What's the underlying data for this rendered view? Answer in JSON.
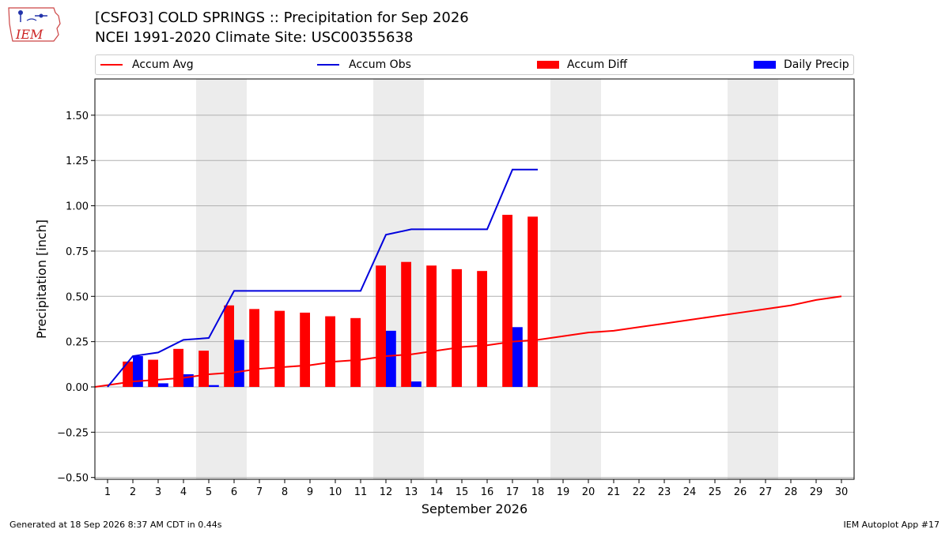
{
  "header": {
    "title_line1": "[CSFO3] COLD SPRINGS :: Precipitation for Sep 2026",
    "title_line2": "NCEI 1991-2020 Climate Site: USC00355638"
  },
  "logo": {
    "text": "IEM"
  },
  "footer": {
    "left": "Generated at 18 Sep 2026 8:37 AM CDT in 0.44s",
    "right": "IEM Autoplot App #17"
  },
  "legend": [
    {
      "label": "Accum Avg",
      "kind": "line",
      "color": "#ff0000"
    },
    {
      "label": "Accum Obs",
      "kind": "line",
      "color": "#0000dd"
    },
    {
      "label": "Accum Diff",
      "kind": "bar",
      "color": "#ff0000"
    },
    {
      "label": "Daily Precip",
      "kind": "bar",
      "color": "#0000ff"
    }
  ],
  "chart_data": {
    "type": "bar",
    "xlabel": "September 2026",
    "ylabel": "Precipitation [inch]",
    "xlim": [
      0.5,
      30.5
    ],
    "ylim": [
      -0.51,
      1.7
    ],
    "x_ticks": [
      1,
      2,
      3,
      4,
      5,
      6,
      7,
      8,
      9,
      10,
      11,
      12,
      13,
      14,
      15,
      16,
      17,
      18,
      19,
      20,
      21,
      22,
      23,
      24,
      25,
      26,
      27,
      28,
      29,
      30
    ],
    "y_ticks": [
      -0.5,
      -0.25,
      0.0,
      0.25,
      0.5,
      0.75,
      1.0,
      1.25,
      1.5
    ],
    "y_tick_labels": [
      "−0.50",
      "−0.25",
      "0.00",
      "0.25",
      "0.50",
      "0.75",
      "1.00",
      "1.25",
      "1.50"
    ],
    "grid": true,
    "legend_position": "top",
    "weekend_shading_days": [
      5,
      6,
      12,
      13,
      19,
      20,
      26,
      27
    ],
    "colors": {
      "avg": "#ff0000",
      "obs": "#0000dd",
      "diff": "#ff0000",
      "daily": "#0000ff",
      "weekend": "#ececec",
      "grid": "#b0b0b0"
    },
    "accum_avg": {
      "x": [
        0.5,
        1,
        2,
        3,
        4,
        5,
        6,
        7,
        8,
        9,
        10,
        11,
        12,
        13,
        14,
        15,
        16,
        17,
        18,
        19,
        20,
        21,
        22,
        23,
        24,
        25,
        26,
        27,
        28,
        29,
        30
      ],
      "y": [
        0.0,
        0.01,
        0.03,
        0.04,
        0.05,
        0.07,
        0.08,
        0.1,
        0.11,
        0.12,
        0.14,
        0.15,
        0.17,
        0.18,
        0.2,
        0.22,
        0.23,
        0.25,
        0.26,
        0.28,
        0.3,
        0.31,
        0.33,
        0.35,
        0.37,
        0.39,
        0.41,
        0.43,
        0.45,
        0.48,
        0.5
      ]
    },
    "accum_obs": {
      "x": [
        1,
        2,
        3,
        4,
        5,
        6,
        7,
        8,
        9,
        10,
        11,
        12,
        13,
        14,
        15,
        16,
        17,
        18
      ],
      "y": [
        0.0,
        0.17,
        0.19,
        0.26,
        0.27,
        0.53,
        0.53,
        0.53,
        0.53,
        0.53,
        0.53,
        0.84,
        0.87,
        0.87,
        0.87,
        0.87,
        1.2,
        1.2
      ]
    },
    "accum_diff": {
      "days": [
        2,
        3,
        4,
        5,
        6,
        7,
        8,
        9,
        10,
        11,
        12,
        13,
        14,
        15,
        16,
        17,
        18
      ],
      "values": [
        0.14,
        0.15,
        0.21,
        0.2,
        0.45,
        0.43,
        0.42,
        0.41,
        0.39,
        0.38,
        0.67,
        0.69,
        0.67,
        0.65,
        0.64,
        0.95,
        0.94
      ]
    },
    "daily_precip": {
      "days": [
        2,
        3,
        4,
        5,
        6,
        12,
        13,
        17
      ],
      "values": [
        0.17,
        0.02,
        0.07,
        0.01,
        0.26,
        0.31,
        0.03,
        0.33
      ]
    }
  }
}
